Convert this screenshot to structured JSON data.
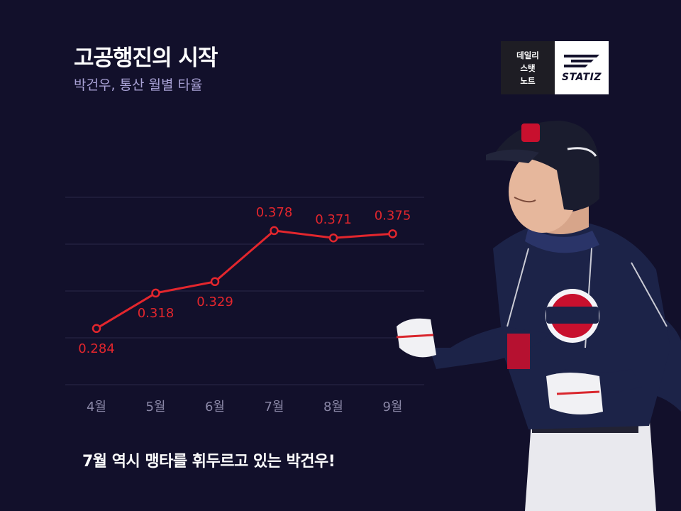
{
  "header": {
    "title": "고공행진의 시작",
    "subtitle": "박건우, 통산 월별 타율"
  },
  "logo": {
    "left_lines": [
      "데일리",
      "스탯",
      "노트"
    ],
    "brand": "STATIZ"
  },
  "caption": "7월 역시 맹타를 휘두르고 있는 박건우!",
  "colors": {
    "background": "#12102b",
    "line": "#e3262d",
    "label": "#e3262d",
    "grid": "#2a2848",
    "tick": "#8a87a6"
  },
  "chart_data": {
    "type": "line",
    "title": "",
    "xlabel": "",
    "ylabel": "",
    "categories": [
      "4월",
      "5월",
      "6월",
      "7월",
      "8월",
      "9월"
    ],
    "series": [
      {
        "values": [
          0.284,
          0.318,
          0.329,
          0.378,
          0.371,
          0.375
        ]
      }
    ],
    "data_labels": [
      "0.284",
      "0.318",
      "0.329",
      "0.378",
      "0.371",
      "0.375"
    ],
    "ylim": [
      0.23,
      0.41
    ],
    "grid": true,
    "legend": "none"
  }
}
